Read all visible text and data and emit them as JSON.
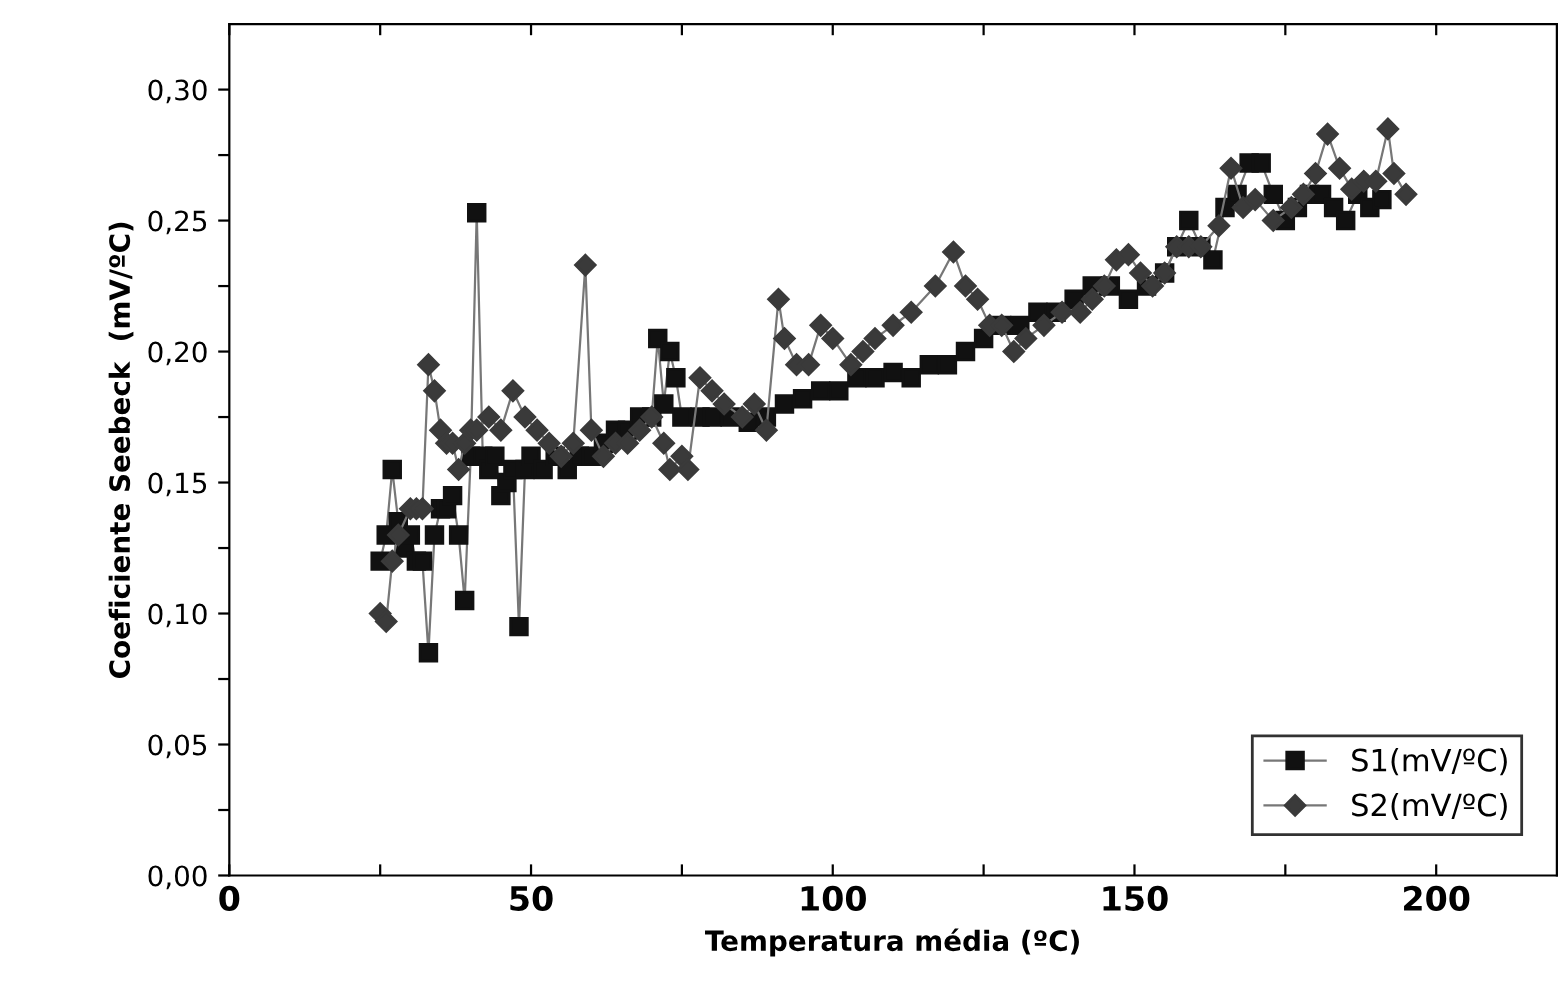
{
  "chart_data": {
    "type": "line",
    "xlabel": "Temperatura média (ºC)",
    "ylabel": "Coeficiente Seebeck  (mV/ºC)",
    "xlim": [
      0,
      220
    ],
    "ylim": [
      0,
      0.325
    ],
    "xticks": [
      0,
      {
        "value": 25,
        "label": null
      },
      50,
      {
        "value": 75,
        "label": null
      },
      100,
      {
        "value": 125,
        "label": null
      },
      150,
      {
        "value": 175,
        "label": null
      },
      200
    ],
    "yticks": [
      {
        "value": 0,
        "label": "0,00"
      },
      {
        "value": 0.025,
        "label": null
      },
      {
        "value": 0.05,
        "label": "0,05"
      },
      {
        "value": 0.075,
        "label": null
      },
      {
        "value": 0.1,
        "label": "0,10"
      },
      {
        "value": 0.125,
        "label": null
      },
      {
        "value": 0.15,
        "label": "0,15"
      },
      {
        "value": 0.175,
        "label": null
      },
      {
        "value": 0.2,
        "label": "0,20"
      },
      {
        "value": 0.225,
        "label": null
      },
      {
        "value": 0.25,
        "label": "0,25"
      },
      {
        "value": 0.275,
        "label": null
      },
      {
        "value": 0.3,
        "label": "0,30"
      }
    ],
    "grid": false,
    "legend": "bottom right",
    "series": [
      {
        "name": "S1(mV/ºC)",
        "color": "#111111",
        "marker": "square",
        "x": [
          25,
          26,
          27,
          28,
          29,
          30,
          31,
          32,
          33,
          34,
          35,
          36,
          37,
          38,
          39,
          40,
          41,
          42,
          43,
          44,
          45,
          46,
          47,
          48,
          49,
          50,
          52,
          54,
          56,
          58,
          60,
          62,
          64,
          66,
          68,
          70,
          71,
          72,
          73,
          74,
          75,
          78,
          80,
          83,
          86,
          89,
          92,
          95,
          98,
          101,
          104,
          107,
          110,
          113,
          116,
          119,
          122,
          125,
          128,
          131,
          134,
          137,
          140,
          143,
          146,
          149,
          152,
          155,
          157,
          159,
          161,
          163,
          165,
          167,
          169,
          171,
          173,
          175,
          177,
          179,
          181,
          183,
          185,
          187,
          189,
          191
        ],
        "values": [
          0.12,
          0.13,
          0.155,
          0.135,
          0.125,
          0.13,
          0.12,
          0.12,
          0.085,
          0.13,
          0.14,
          0.14,
          0.145,
          0.13,
          0.105,
          0.16,
          0.253,
          0.16,
          0.155,
          0.16,
          0.145,
          0.15,
          0.155,
          0.095,
          0.155,
          0.16,
          0.155,
          0.16,
          0.155,
          0.16,
          0.16,
          0.165,
          0.17,
          0.17,
          0.175,
          0.175,
          0.205,
          0.18,
          0.2,
          0.19,
          0.175,
          0.175,
          0.175,
          0.175,
          0.173,
          0.175,
          0.18,
          0.182,
          0.185,
          0.185,
          0.19,
          0.19,
          0.192,
          0.19,
          0.195,
          0.195,
          0.2,
          0.205,
          0.21,
          0.21,
          0.215,
          0.215,
          0.22,
          0.225,
          0.225,
          0.22,
          0.225,
          0.23,
          0.24,
          0.25,
          0.24,
          0.235,
          0.255,
          0.26,
          0.272,
          0.272,
          0.26,
          0.25,
          0.255,
          0.26,
          0.26,
          0.255,
          0.25,
          0.26,
          0.255,
          0.258
        ]
      },
      {
        "name": "S2(mV/ºC)",
        "color": "#3a3a3a",
        "marker": "diamond",
        "x": [
          25,
          26,
          27,
          28,
          30,
          31,
          32,
          33,
          34,
          35,
          36,
          37,
          38,
          39,
          40,
          41,
          43,
          45,
          47,
          49,
          51,
          53,
          55,
          57,
          59,
          60,
          62,
          64,
          66,
          68,
          70,
          72,
          73,
          75,
          76,
          78,
          80,
          82,
          85,
          87,
          89,
          91,
          92,
          94,
          96,
          98,
          100,
          103,
          105,
          107,
          110,
          113,
          117,
          120,
          122,
          124,
          126,
          128,
          130,
          132,
          135,
          138,
          141,
          143,
          145,
          147,
          149,
          151,
          153,
          155,
          157,
          159,
          161,
          164,
          166,
          168,
          170,
          173,
          176,
          178,
          180,
          182,
          184,
          186,
          188,
          190,
          192,
          193,
          195
        ],
        "values": [
          0.1,
          0.097,
          0.12,
          0.13,
          0.14,
          0.14,
          0.14,
          0.195,
          0.185,
          0.17,
          0.165,
          0.165,
          0.155,
          0.165,
          0.17,
          0.17,
          0.175,
          0.17,
          0.185,
          0.175,
          0.17,
          0.165,
          0.16,
          0.165,
          0.233,
          0.17,
          0.16,
          0.165,
          0.165,
          0.17,
          0.175,
          0.165,
          0.155,
          0.16,
          0.155,
          0.19,
          0.185,
          0.18,
          0.175,
          0.18,
          0.17,
          0.22,
          0.205,
          0.195,
          0.195,
          0.21,
          0.205,
          0.195,
          0.2,
          0.205,
          0.21,
          0.215,
          0.225,
          0.238,
          0.225,
          0.22,
          0.21,
          0.21,
          0.2,
          0.205,
          0.21,
          0.215,
          0.215,
          0.22,
          0.225,
          0.235,
          0.237,
          0.23,
          0.225,
          0.23,
          0.24,
          0.24,
          0.24,
          0.248,
          0.27,
          0.255,
          0.258,
          0.25,
          0.255,
          0.26,
          0.268,
          0.283,
          0.27,
          0.262,
          0.265,
          0.265,
          0.285,
          0.268,
          0.26
        ]
      }
    ]
  }
}
